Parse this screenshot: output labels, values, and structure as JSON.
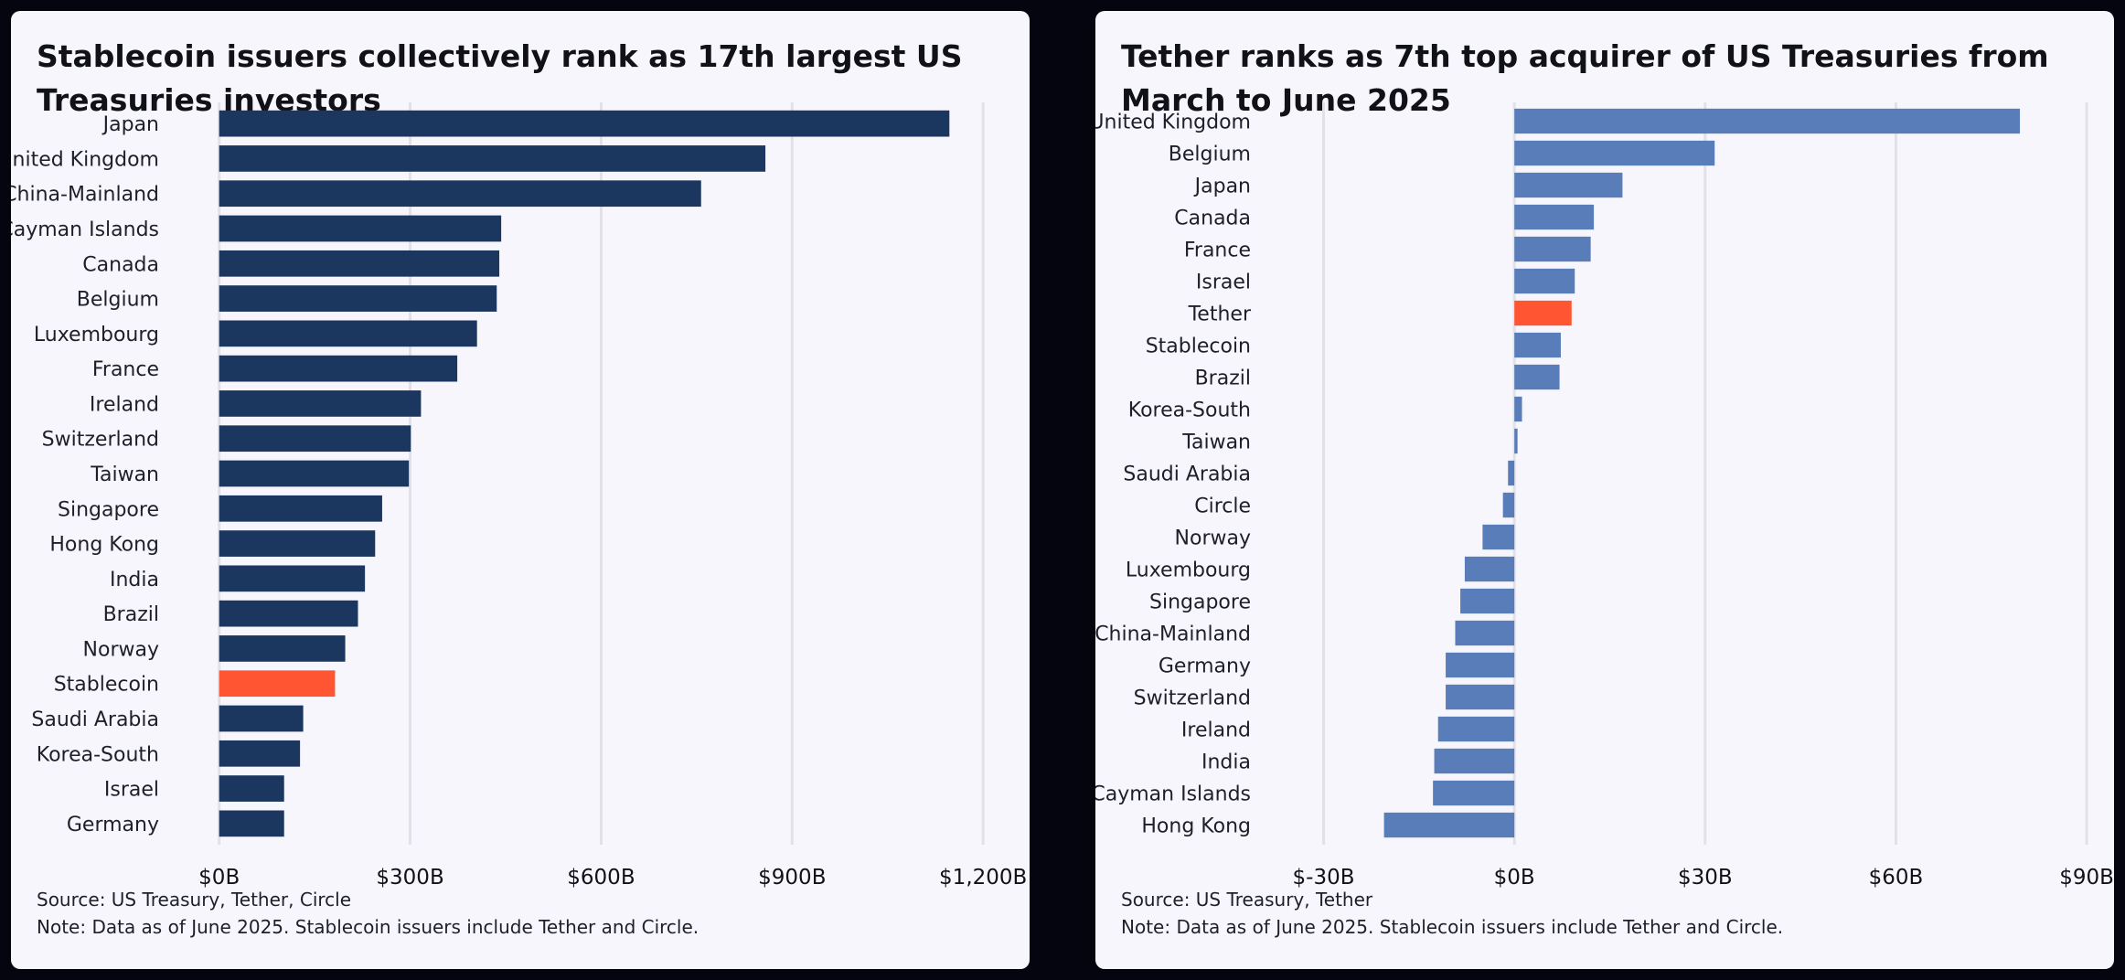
{
  "chart_data": [
    {
      "type": "bar",
      "orientation": "horizontal",
      "title": "Stablecoin issuers collectively rank as 17th largest US Treasuries investors",
      "categories": [
        "Japan",
        "United Kingdom",
        "China-Mainland",
        "Cayman Islands",
        "Canada",
        "Belgium",
        "Luxembourg",
        "France",
        "Ireland",
        "Switzerland",
        "Taiwan",
        "Singapore",
        "Hong Kong",
        "India",
        "Brazil",
        "Norway",
        "Stablecoin",
        "Saudi Arabia",
        "Korea-South",
        "Israel",
        "Germany"
      ],
      "values": [
        1147,
        858,
        757,
        443,
        440,
        436,
        405,
        374,
        317,
        301,
        298,
        256,
        245,
        229,
        218,
        198,
        182,
        132,
        127,
        102,
        102
      ],
      "unit": "B USD",
      "highlight": "Stablecoin",
      "xlim": [
        -80,
        1250
      ],
      "xticks": [
        0,
        300,
        600,
        900,
        1200
      ],
      "xtick_labels": [
        "$0B",
        "$300B",
        "$600B",
        "$900B",
        "$1,200B"
      ],
      "grid": true,
      "colors": {
        "bar": "#1b365f",
        "highlight": "#ff5533",
        "grid": "#e2e1e7"
      },
      "source": "Source: US Treasury, Tether, Circle",
      "note": "Note: Data as of June 2025. Stablecoin issuers include Tether and Circle."
    },
    {
      "type": "bar",
      "orientation": "horizontal",
      "title": "Tether ranks as 7th top acquirer of US Treasuries from March to June 2025",
      "categories": [
        "United Kingdom",
        "Belgium",
        "Japan",
        "Canada",
        "France",
        "Israel",
        "Tether",
        "Stablecoin",
        "Brazil",
        "Korea-South",
        "Taiwan",
        "Saudi Arabia",
        "Circle",
        "Norway",
        "Luxembourg",
        "Singapore",
        "China-Mainland",
        "Germany",
        "Switzerland",
        "Ireland",
        "India",
        "Cayman Islands",
        "Hong Kong"
      ],
      "values": [
        79.5,
        31.5,
        17,
        12.5,
        12,
        9.5,
        9,
        7.3,
        7.1,
        1.2,
        0.5,
        -1,
        -1.8,
        -5,
        -7.8,
        -8.5,
        -9.3,
        -10.8,
        -10.8,
        -12,
        -12.6,
        -12.8,
        -20.5
      ],
      "unit": "B USD",
      "highlight": "Tether",
      "xlim": [
        -40,
        92
      ],
      "xticks": [
        -30,
        0,
        30,
        60,
        90
      ],
      "xtick_labels": [
        "$-30B",
        "$0B",
        "$30B",
        "$60B",
        "$90B"
      ],
      "grid": true,
      "colors": {
        "bar": "#587db8",
        "highlight": "#ff5533",
        "grid": "#e2e1e7"
      },
      "source": "Source: US Treasury, Tether",
      "note": "Note: Data as of June 2025. Stablecoin issuers include Tether and Circle."
    }
  ]
}
